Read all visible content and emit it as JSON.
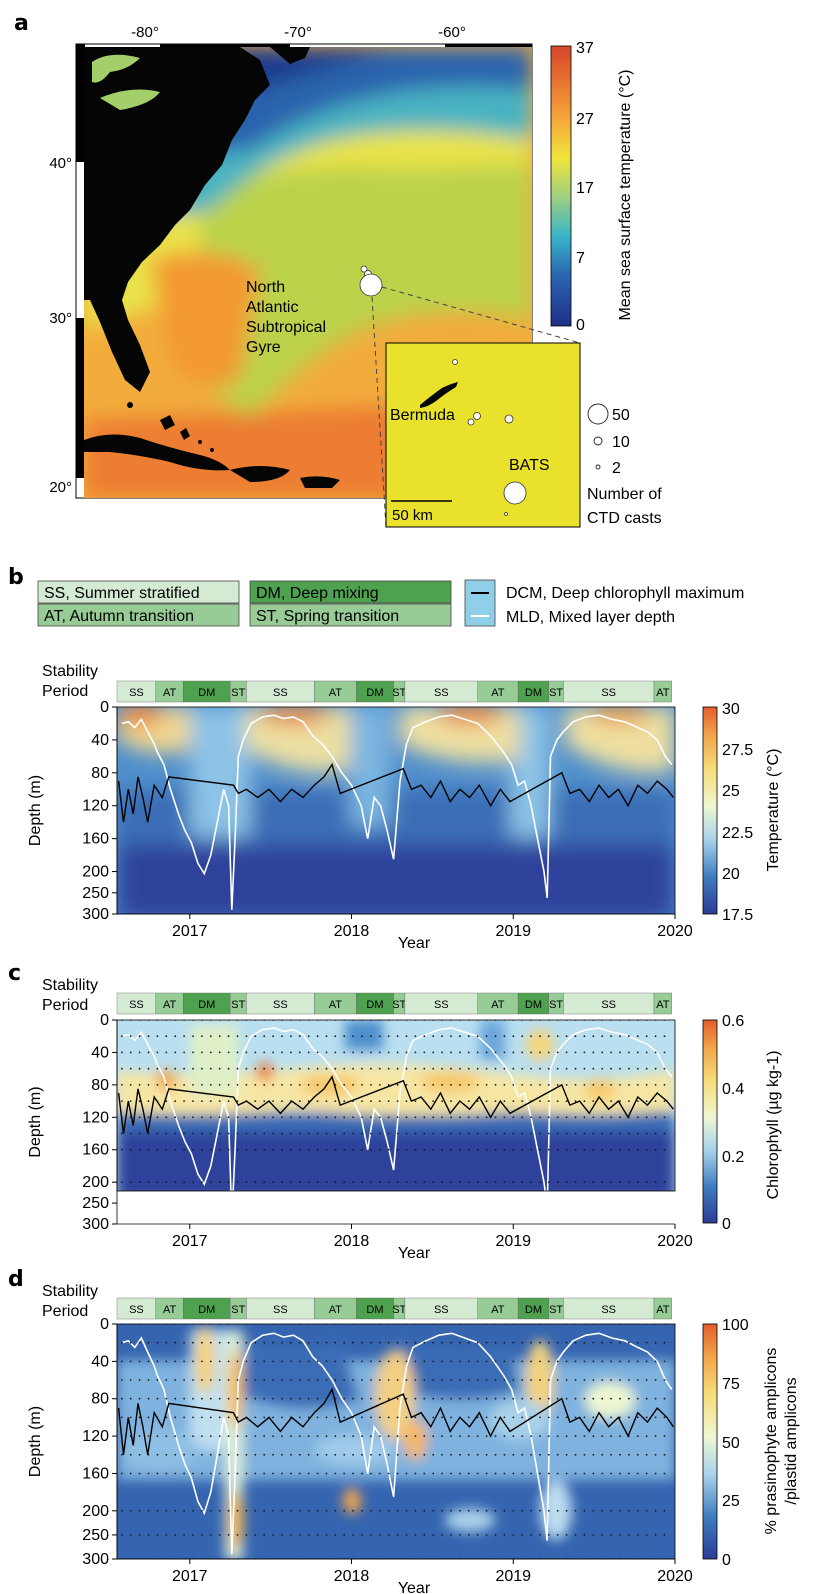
{
  "figure": {
    "panel_letters": [
      "a",
      "b",
      "c",
      "d"
    ]
  },
  "map": {
    "lon_ticks": [
      "-80°",
      "-70°",
      "-60°"
    ],
    "lat_ticks": [
      "40°",
      "30°",
      "20°"
    ],
    "region_label_lines": [
      "North",
      "Atlantic",
      "Subtropical",
      "Gyre"
    ],
    "colorbar": {
      "title": "Mean sea surface temperature (°C)",
      "ticks": [
        "37",
        "27",
        "17",
        "7",
        "0"
      ]
    },
    "inset": {
      "island_label": "Bermuda",
      "station_label": "BATS",
      "scale_label": "50 km"
    },
    "size_legend": {
      "values": [
        "50",
        "10",
        "2"
      ],
      "title_lines": [
        "Number of",
        "CTD casts"
      ]
    }
  },
  "legend": {
    "periods": [
      {
        "code": "SS",
        "text": "SS,  Summer stratified",
        "color": "#d4ead3"
      },
      {
        "code": "AT",
        "text": "AT,   Autumn transition",
        "color": "#97cc96"
      },
      {
        "code": "DM",
        "text": "DM,  Deep mixing",
        "color": "#4ea24f"
      },
      {
        "code": "ST",
        "text": "ST,   Spring transition",
        "color": "#97cc96"
      }
    ],
    "lines": [
      {
        "text": "DCM,  Deep chlorophyll maximum",
        "color": "#000000"
      },
      {
        "text": "MLD,  Mixed layer depth",
        "color": "#ffffff"
      }
    ],
    "swatch_color": "#8fd0e8"
  },
  "stability_label_lines": [
    "Stability",
    "Period"
  ],
  "stability_bar": [
    {
      "code": "SS",
      "start": 2016.55,
      "end": 2016.79
    },
    {
      "code": "AT",
      "start": 2016.79,
      "end": 2016.96
    },
    {
      "code": "DM",
      "start": 2016.96,
      "end": 2017.25
    },
    {
      "code": "ST",
      "start": 2017.25,
      "end": 2017.35
    },
    {
      "code": "SS",
      "start": 2017.35,
      "end": 2017.77
    },
    {
      "code": "AT",
      "start": 2017.77,
      "end": 2018.03
    },
    {
      "code": "DM",
      "start": 2018.03,
      "end": 2018.26
    },
    {
      "code": "ST",
      "start": 2018.26,
      "end": 2018.33
    },
    {
      "code": "SS",
      "start": 2018.33,
      "end": 2018.78
    },
    {
      "code": "AT",
      "start": 2018.78,
      "end": 2019.03
    },
    {
      "code": "DM",
      "start": 2019.03,
      "end": 2019.22
    },
    {
      "code": "ST",
      "start": 2019.22,
      "end": 2019.31
    },
    {
      "code": "SS",
      "start": 2019.31,
      "end": 2019.87
    },
    {
      "code": "AT",
      "start": 2019.87,
      "end": 2019.98
    }
  ],
  "period_colors": {
    "SS": "#d4ead3",
    "AT": "#97cc96",
    "DM": "#4ea24f",
    "ST": "#97cc96"
  },
  "chart_data": [
    {
      "type": "heatmap",
      "panel": "b",
      "xlabel": "Year",
      "ylabel": "Depth (m)",
      "x_ticks": [
        2017,
        2018,
        2019,
        2020
      ],
      "xlim": [
        2016.55,
        2020.0
      ],
      "y_ticks": [
        0,
        40,
        80,
        120,
        160,
        200,
        250,
        300
      ],
      "ylim": [
        300,
        0
      ],
      "colorbar": {
        "label": "Temperature (°C)",
        "ticks": [
          "30",
          "27.5",
          "25",
          "22.5",
          "20",
          "17.5"
        ],
        "range": [
          17.5,
          30
        ]
      },
      "variable": "temperature"
    },
    {
      "type": "heatmap",
      "panel": "c",
      "xlabel": "Year",
      "ylabel": "Depth (m)",
      "x_ticks": [
        2017,
        2018,
        2019,
        2020
      ],
      "xlim": [
        2016.55,
        2020.0
      ],
      "y_ticks": [
        0,
        40,
        80,
        120,
        160,
        200,
        250,
        300
      ],
      "ylim": [
        300,
        0
      ],
      "colorbar": {
        "label": "Chlorophyll (µg kg-1)",
        "ticks": [
          "0.6",
          "0.4",
          "0.2",
          "0"
        ],
        "range": [
          0,
          0.6
        ]
      },
      "variable": "chlorophyll"
    },
    {
      "type": "heatmap",
      "panel": "d",
      "xlabel": "Year",
      "ylabel": "Depth (m)",
      "x_ticks": [
        2017,
        2018,
        2019,
        2020
      ],
      "xlim": [
        2016.55,
        2020.0
      ],
      "y_ticks": [
        0,
        40,
        80,
        120,
        160,
        200,
        250,
        300
      ],
      "ylim": [
        300,
        0
      ],
      "colorbar": {
        "label_lines": [
          "% prasinophyte amplicons",
          "/plastid amplicons"
        ],
        "ticks": [
          "100",
          "75",
          "50",
          "25",
          "0"
        ],
        "range": [
          0,
          100
        ]
      },
      "variable": "prasinophyte_fraction"
    }
  ],
  "series": {
    "mld": {
      "name": "MLD",
      "x": [
        2016.58,
        2016.62,
        2016.66,
        2016.7,
        2016.74,
        2016.78,
        2016.8,
        2016.84,
        2016.88,
        2016.93,
        2016.97,
        2017.01,
        2017.05,
        2017.09,
        2017.13,
        2017.17,
        2017.21,
        2017.24,
        2017.26,
        2017.28,
        2017.3,
        2017.33,
        2017.38,
        2017.45,
        2017.52,
        2017.58,
        2017.64,
        2017.7,
        2017.76,
        2017.82,
        2017.88,
        2017.94,
        2018.0,
        2018.06,
        2018.1,
        2018.14,
        2018.18,
        2018.22,
        2018.26,
        2018.3,
        2018.34,
        2018.38,
        2018.46,
        2018.54,
        2018.62,
        2018.7,
        2018.78,
        2018.86,
        2018.94,
        2018.99,
        2019.03,
        2019.07,
        2019.11,
        2019.15,
        2019.19,
        2019.21,
        2019.23,
        2019.27,
        2019.31,
        2019.37,
        2019.45,
        2019.53,
        2019.61,
        2019.69,
        2019.77,
        2019.83,
        2019.89,
        2019.94,
        2019.98
      ],
      "y": [
        20,
        18,
        25,
        15,
        30,
        45,
        55,
        70,
        100,
        130,
        150,
        165,
        190,
        205,
        180,
        140,
        100,
        120,
        290,
        160,
        60,
        40,
        20,
        12,
        10,
        14,
        12,
        18,
        35,
        45,
        60,
        80,
        95,
        120,
        160,
        110,
        120,
        150,
        185,
        90,
        45,
        25,
        18,
        12,
        10,
        15,
        20,
        35,
        55,
        70,
        95,
        90,
        120,
        160,
        200,
        262,
        60,
        40,
        30,
        18,
        12,
        10,
        15,
        18,
        25,
        30,
        40,
        60,
        70
      ]
    },
    "dcm": {
      "name": "DCM",
      "x": [
        2016.56,
        2016.59,
        2016.62,
        2016.65,
        2016.68,
        2016.71,
        2016.74,
        2016.78,
        2016.83,
        2016.87,
        2017.27,
        2017.3,
        2017.35,
        2017.42,
        2017.49,
        2017.56,
        2017.63,
        2017.7,
        2017.77,
        2017.83,
        2017.88,
        2017.93,
        2018.32,
        2018.37,
        2018.43,
        2018.49,
        2018.55,
        2018.61,
        2018.67,
        2018.73,
        2018.79,
        2018.86,
        2018.92,
        2018.98,
        2019.3,
        2019.35,
        2019.41,
        2019.47,
        2019.53,
        2019.59,
        2019.65,
        2019.71,
        2019.77,
        2019.83,
        2019.89,
        2019.95,
        2019.99
      ],
      "y": [
        90,
        140,
        100,
        130,
        85,
        110,
        140,
        95,
        110,
        85,
        95,
        105,
        100,
        110,
        100,
        115,
        100,
        110,
        95,
        85,
        70,
        105,
        75,
        100,
        95,
        110,
        90,
        115,
        100,
        110,
        95,
        120,
        100,
        115,
        80,
        105,
        100,
        115,
        95,
        110,
        100,
        120,
        95,
        105,
        90,
        100,
        110
      ]
    }
  }
}
